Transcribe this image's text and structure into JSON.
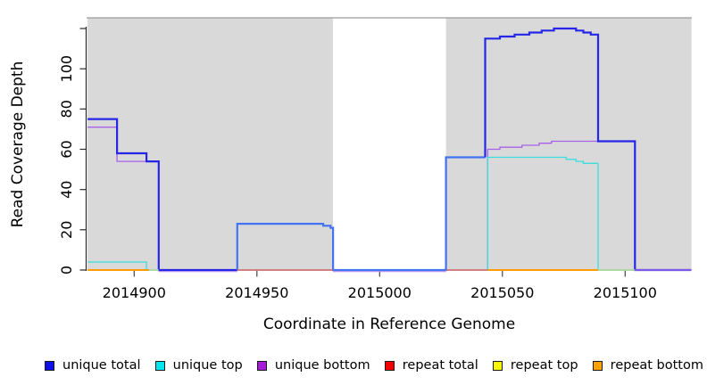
{
  "chart_data": {
    "type": "line",
    "title": "",
    "xlabel": "Coordinate in Reference Genome",
    "ylabel": "Read Coverage Depth",
    "xlim": [
      2014881,
      2015127
    ],
    "ylim": [
      0,
      126
    ],
    "x_ticks": [
      2014900,
      2014950,
      2015000,
      2015050,
      2015100
    ],
    "y_ticks": [
      0,
      20,
      40,
      60,
      80,
      100
    ],
    "y_ticks_unlabeled": [
      120
    ],
    "grid": "off",
    "legend_position": "bottom",
    "background_regions": [
      {
        "x0": 2014881,
        "x1": 2014981,
        "color": "#d9d9d9"
      },
      {
        "x0": 2014981,
        "x1": 2015027,
        "color": "#ffffff"
      },
      {
        "x0": 2015027,
        "x1": 2015127,
        "color": "#d9d9d9"
      }
    ],
    "series": [
      {
        "name": "repeat top",
        "color": "#f0f000",
        "width": 1.1,
        "paths": [
          {
            "points": [
              [
                2014881,
                0
              ],
              [
                2015127,
                0
              ]
            ]
          }
        ]
      },
      {
        "name": "repeat total",
        "color": "#dd6070",
        "width": 1.1,
        "paths": [
          {
            "points": [
              [
                2014881,
                0
              ],
              [
                2015127,
                0
              ]
            ]
          }
        ]
      },
      {
        "name": "repeat bottom",
        "color": "#ff9d00",
        "width": 1.6,
        "paths": [
          {
            "points": [
              [
                2014881,
                0
              ],
              [
                2015127,
                0
              ]
            ]
          }
        ]
      },
      {
        "name": "unique bottom",
        "color": "#a861e8",
        "width": 1.3,
        "paths": [
          {
            "points": [
              [
                2014881,
                71
              ],
              [
                2014893,
                71
              ],
              [
                2014893,
                54
              ],
              [
                2014910,
                54
              ],
              [
                2014910,
                0
              ],
              [
                2015044,
                0
              ],
              [
                2015044,
                60
              ],
              [
                2015049,
                60
              ],
              [
                2015049,
                61
              ],
              [
                2015058,
                61
              ],
              [
                2015058,
                62
              ],
              [
                2015065,
                62
              ],
              [
                2015065,
                63
              ],
              [
                2015070,
                63
              ],
              [
                2015070,
                64
              ],
              [
                2015104,
                64
              ],
              [
                2015104,
                0
              ],
              [
                2015127,
                0
              ]
            ]
          }
        ]
      },
      {
        "name": "unique top",
        "color": "#3adede",
        "width": 1.3,
        "paths": [
          {
            "points": [
              [
                2014881,
                4
              ],
              [
                2014905,
                4
              ],
              [
                2014905,
                0
              ],
              [
                2015044,
                0
              ],
              [
                2015044,
                56
              ],
              [
                2015076,
                56
              ],
              [
                2015076,
                55
              ],
              [
                2015080,
                55
              ],
              [
                2015080,
                54
              ],
              [
                2015083,
                54
              ],
              [
                2015083,
                53
              ],
              [
                2015089,
                53
              ],
              [
                2015089,
                0
              ],
              [
                2015127,
                0
              ]
            ]
          }
        ]
      },
      {
        "name": "unique total",
        "color": "#2626e9",
        "width": 2.2,
        "paths": [
          {
            "points": [
              [
                2014881,
                75
              ],
              [
                2014893,
                75
              ],
              [
                2014893,
                58
              ],
              [
                2014905,
                58
              ],
              [
                2014905,
                54
              ],
              [
                2014910,
                54
              ],
              [
                2014910,
                0
              ],
              [
                2014942,
                0
              ]
            ]
          },
          {
            "color": "#4273f2",
            "points": [
              [
                2014942,
                0
              ],
              [
                2014942,
                23
              ],
              [
                2014977,
                23
              ],
              [
                2014977,
                22
              ],
              [
                2014980,
                22
              ],
              [
                2014980,
                21
              ],
              [
                2014981,
                21
              ],
              [
                2014981,
                0
              ],
              [
                2015027,
                0
              ],
              [
                2015027,
                56
              ],
              [
                2015043,
                56
              ]
            ]
          },
          {
            "points": [
              [
                2015043,
                56
              ],
              [
                2015043,
                115
              ],
              [
                2015049,
                115
              ],
              [
                2015049,
                116
              ],
              [
                2015055,
                116
              ],
              [
                2015055,
                117
              ],
              [
                2015061,
                117
              ],
              [
                2015061,
                118
              ],
              [
                2015066,
                118
              ],
              [
                2015066,
                119
              ],
              [
                2015071,
                119
              ],
              [
                2015071,
                120
              ],
              [
                2015080,
                120
              ],
              [
                2015080,
                119
              ],
              [
                2015083,
                119
              ],
              [
                2015083,
                118
              ],
              [
                2015086,
                118
              ],
              [
                2015086,
                117
              ],
              [
                2015089,
                117
              ],
              [
                2015089,
                64
              ],
              [
                2015104,
                64
              ],
              [
                2015104,
                0
              ],
              [
                2015127,
                0
              ]
            ]
          }
        ]
      }
    ],
    "baseline_overlays": [
      {
        "x0": 2014881,
        "x1": 2014906,
        "color": "#ff9d00",
        "width": 2.0,
        "dy": 0
      },
      {
        "x0": 2014906,
        "x1": 2014910,
        "color": "#a8dcae",
        "width": 1.6,
        "dy": 0
      },
      {
        "x0": 2014910,
        "x1": 2014942,
        "color": "#b58cf0",
        "width": 1.2,
        "dy": 1.7
      },
      {
        "x0": 2014942,
        "x1": 2014981,
        "color": "#dd6070",
        "width": 1.2,
        "dy": 0
      },
      {
        "x0": 2014981,
        "x1": 2015027,
        "color": "#b58cf0",
        "width": 1.2,
        "dy": 1.7
      },
      {
        "x0": 2015027,
        "x1": 2015044,
        "color": "#dd6070",
        "width": 1.2,
        "dy": 0
      },
      {
        "x0": 2015044,
        "x1": 2015089,
        "color": "#ff9d00",
        "width": 2.0,
        "dy": 0
      },
      {
        "x0": 2015089,
        "x1": 2015104,
        "color": "#a8dcae",
        "width": 1.6,
        "dy": 0
      },
      {
        "x0": 2015104,
        "x1": 2015127,
        "color": "#9a68e8",
        "width": 1.6,
        "dy": 0
      }
    ]
  },
  "legend": {
    "items": [
      {
        "label": "unique total",
        "color": "#0f0fe8"
      },
      {
        "label": "unique top",
        "color": "#00e5ee"
      },
      {
        "label": "unique bottom",
        "color": "#a61ad8"
      },
      {
        "label": "repeat total",
        "color": "#f50000"
      },
      {
        "label": "repeat top",
        "color": "#f7f700"
      },
      {
        "label": "repeat bottom",
        "color": "#ffa200"
      }
    ]
  }
}
